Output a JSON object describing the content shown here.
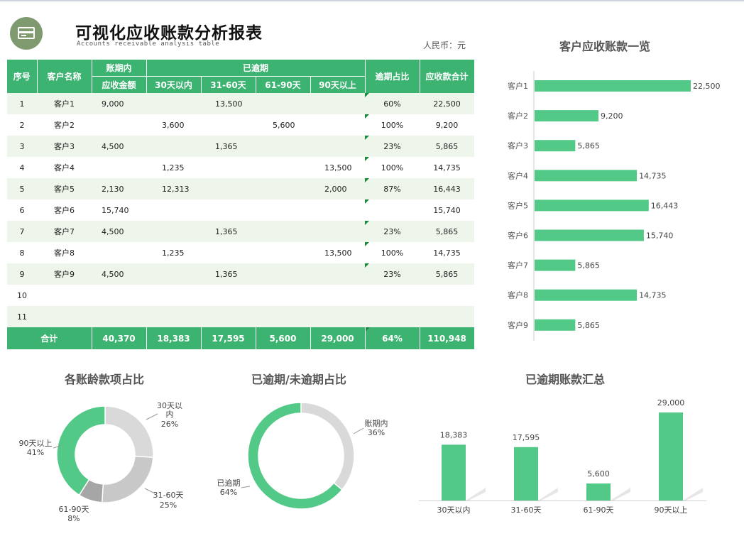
{
  "header": {
    "title": "可视化应收账款分析报表",
    "subtitle": "Accounts receivable analysis table",
    "currency": "人民币：元"
  },
  "table": {
    "headers": {
      "seq": "序号",
      "customer": "客户名称",
      "in_term": "账期内",
      "overdue": "已逾期",
      "overdue_ratio": "逾期占比",
      "total_receivable": "应收款合计",
      "receivable_amount": "应收金额",
      "d30": "30天以内",
      "d31_60": "31-60天",
      "d61_90": "61-90天",
      "d90_plus": "90天以上"
    },
    "rows": [
      [
        "1",
        "客户1",
        "9,000",
        "",
        "13,500",
        "",
        "",
        "60%",
        "22,500"
      ],
      [
        "2",
        "客户2",
        "",
        "3,600",
        "",
        "5,600",
        "",
        "100%",
        "9,200"
      ],
      [
        "3",
        "客户3",
        "4,500",
        "",
        "1,365",
        "",
        "",
        "23%",
        "5,865"
      ],
      [
        "4",
        "客户4",
        "",
        "1,235",
        "",
        "",
        "13,500",
        "100%",
        "14,735"
      ],
      [
        "5",
        "客户5",
        "2,130",
        "12,313",
        "",
        "",
        "2,000",
        "87%",
        "16,443"
      ],
      [
        "6",
        "客户6",
        "15,740",
        "",
        "",
        "",
        "",
        "",
        "15,740"
      ],
      [
        "7",
        "客户7",
        "4,500",
        "",
        "1,365",
        "",
        "",
        "23%",
        "5,865"
      ],
      [
        "8",
        "客户8",
        "",
        "1,235",
        "",
        "",
        "13,500",
        "100%",
        "14,735"
      ],
      [
        "9",
        "客户9",
        "4,500",
        "",
        "1,365",
        "",
        "",
        "23%",
        "5,865"
      ],
      [
        "10",
        "",
        "",
        "",
        "",
        "",
        "",
        "",
        ""
      ],
      [
        "11",
        "",
        "",
        "",
        "",
        "",
        "",
        "",
        ""
      ]
    ],
    "total": [
      "合计",
      "40,370",
      "18,383",
      "17,595",
      "5,600",
      "29,000",
      "64%",
      "110,948"
    ]
  },
  "colors": {
    "green": "#52c987",
    "header_green": "#3cb371",
    "light_gray": "#d9d9d9",
    "mid_gray": "#c8c8c8",
    "dark_gray": "#a6a6a6"
  },
  "chart_data": [
    {
      "type": "bar",
      "orientation": "horizontal",
      "title": "客户应收账款一览",
      "categories": [
        "客户1",
        "客户2",
        "客户3",
        "客户4",
        "客户5",
        "客户6",
        "客户7",
        "客户8",
        "客户9"
      ],
      "values": [
        22500,
        9200,
        5865,
        14735,
        16443,
        15740,
        5865,
        14735,
        5865
      ],
      "value_labels": [
        "22,500",
        "9,200",
        "5,865",
        "14,735",
        "16,443",
        "15,740",
        "5,865",
        "14,735",
        "5,865"
      ],
      "xlim": [
        0,
        22500
      ]
    },
    {
      "type": "pie",
      "style": "donut",
      "title": "各账龄款项占比",
      "categories": [
        "30天以内",
        "31-60天",
        "61-90天",
        "90天以上"
      ],
      "values": [
        26,
        25,
        8,
        41
      ],
      "labels": [
        [
          "30天以",
          "内",
          "26%"
        ],
        [
          "31-60天",
          "25%"
        ],
        [
          "61-90天",
          "8%"
        ],
        [
          "90天以上",
          "41%"
        ]
      ]
    },
    {
      "type": "pie",
      "style": "donut",
      "title": "已逾期/未逾期占比",
      "categories": [
        "账期内",
        "已逾期"
      ],
      "values": [
        36,
        64
      ],
      "labels": [
        [
          "账期内",
          "36%"
        ],
        [
          "已逾期",
          "64%"
        ]
      ]
    },
    {
      "type": "bar",
      "title": "已逾期账款汇总",
      "categories": [
        "30天以内",
        "31-60天",
        "61-90天",
        "90天以上"
      ],
      "values": [
        18383,
        17595,
        5600,
        29000
      ],
      "value_labels": [
        "18,383",
        "17,595",
        "5,600",
        "29,000"
      ],
      "ylim": [
        0,
        29000
      ]
    }
  ]
}
